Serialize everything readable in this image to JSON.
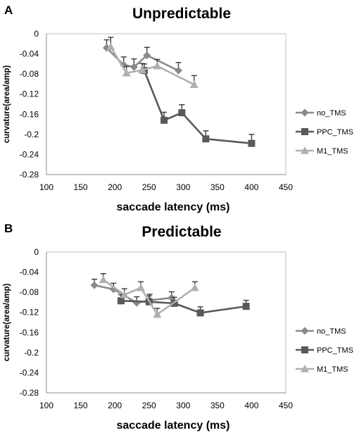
{
  "colors": {
    "no_TMS": "#8a8a8a",
    "PPC_TMS": "#595959",
    "M1_TMS": "#b0b0b0",
    "error_bar": "#3a3a3a"
  },
  "chart_data": [
    {
      "type": "line",
      "panel": "A",
      "title": "Unpredictable",
      "xlabel": "saccade latency (ms)",
      "ylabel": "curvature(area/amp)",
      "xlim": [
        100,
        450
      ],
      "ylim": [
        -0.28,
        0
      ],
      "xticks": [
        "100",
        "150",
        "200",
        "250",
        "300",
        "350",
        "400",
        "450"
      ],
      "yticks": [
        "0",
        "-0.04",
        "-0.08",
        "-0.12",
        "-0.16",
        "-0.2",
        "-0.24",
        "-0.28"
      ],
      "legend_position": "right",
      "series": [
        {
          "name": "no_TMS",
          "marker": "diamond",
          "points": [
            {
              "x": 188,
              "y": -0.028,
              "err": 0.016
            },
            {
              "x": 213,
              "y": -0.062,
              "err": 0.016
            },
            {
              "x": 228,
              "y": -0.066,
              "err": 0.016
            },
            {
              "x": 247,
              "y": -0.043,
              "err": 0.016
            },
            {
              "x": 293,
              "y": -0.073,
              "err": 0.016
            }
          ]
        },
        {
          "name": "PPC_TMS",
          "marker": "square",
          "points": [
            {
              "x": 243,
              "y": -0.073,
              "err": 0.013
            },
            {
              "x": 272,
              "y": -0.172,
              "err": 0.016
            },
            {
              "x": 298,
              "y": -0.157,
              "err": 0.016
            },
            {
              "x": 333,
              "y": -0.209,
              "err": 0.016
            },
            {
              "x": 400,
              "y": -0.218,
              "err": 0.018
            }
          ]
        },
        {
          "name": "M1_TMS",
          "marker": "triangle",
          "points": [
            {
              "x": 194,
              "y": -0.026,
              "err": 0.019
            },
            {
              "x": 217,
              "y": -0.078,
              "err": 0.013
            },
            {
              "x": 240,
              "y": -0.072,
              "err": 0.013
            },
            {
              "x": 262,
              "y": -0.064,
              "err": 0.013
            },
            {
              "x": 316,
              "y": -0.101,
              "err": 0.018
            }
          ]
        }
      ]
    },
    {
      "type": "line",
      "panel": "B",
      "title": "Predictable",
      "xlabel": "saccade latency (ms)",
      "ylabel": "curvature(area/amp)",
      "xlim": [
        100,
        450
      ],
      "ylim": [
        -0.28,
        0
      ],
      "xticks": [
        "100",
        "150",
        "200",
        "250",
        "300",
        "350",
        "400",
        "450"
      ],
      "yticks": [
        "0",
        "-0.04",
        "-0.08",
        "-0.12",
        "-0.16",
        "-0.2",
        "-0.24",
        "-0.28"
      ],
      "legend_position": "right",
      "series": [
        {
          "name": "no_TMS",
          "marker": "diamond",
          "points": [
            {
              "x": 170,
              "y": -0.066,
              "err": 0.012
            },
            {
              "x": 198,
              "y": -0.074,
              "err": 0.012
            },
            {
              "x": 232,
              "y": -0.101,
              "err": 0.012
            },
            {
              "x": 251,
              "y": -0.096,
              "err": 0.012
            },
            {
              "x": 283,
              "y": -0.091,
              "err": 0.012
            }
          ]
        },
        {
          "name": "PPC_TMS",
          "marker": "square",
          "points": [
            {
              "x": 209,
              "y": -0.097,
              "err": 0.012
            },
            {
              "x": 250,
              "y": -0.099,
              "err": 0.012
            },
            {
              "x": 287,
              "y": -0.102,
              "err": 0.012
            },
            {
              "x": 325,
              "y": -0.121,
              "err": 0.012
            },
            {
              "x": 392,
              "y": -0.108,
              "err": 0.012
            }
          ]
        },
        {
          "name": "M1_TMS",
          "marker": "triangle",
          "points": [
            {
              "x": 183,
              "y": -0.055,
              "err": 0.012
            },
            {
              "x": 214,
              "y": -0.085,
              "err": 0.012
            },
            {
              "x": 238,
              "y": -0.071,
              "err": 0.012
            },
            {
              "x": 262,
              "y": -0.124,
              "err": 0.012
            },
            {
              "x": 317,
              "y": -0.071,
              "err": 0.012
            }
          ]
        }
      ]
    }
  ]
}
